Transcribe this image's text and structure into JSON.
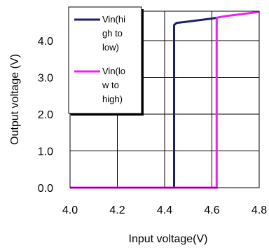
{
  "chart_data": {
    "type": "line",
    "xlabel": "Input voltage(V)",
    "ylabel": "Output voltage (V)",
    "xlim": [
      4.0,
      4.8
    ],
    "ylim": [
      0.0,
      4.8
    ],
    "x_ticks": [
      "4.0",
      "4.2",
      "4.4",
      "4.6",
      "4.8"
    ],
    "y_ticks": [
      "0.0",
      "1.0",
      "2.0",
      "3.0",
      "4.0"
    ],
    "x_tick_values": [
      4.0,
      4.2,
      4.4,
      4.6,
      4.8
    ],
    "y_tick_values": [
      0.0,
      1.0,
      2.0,
      3.0,
      4.0
    ],
    "grid": true,
    "legend_position": "top-left",
    "series": [
      {
        "name": "Vin(high to low)",
        "legend_lines": [
          "Vin(hi",
          "gh to",
          "low)"
        ],
        "color": "#1a1f6e",
        "points": [
          [
            4.0,
            0.0
          ],
          [
            4.44,
            0.0
          ],
          [
            4.44,
            4.42
          ],
          [
            4.45,
            4.48
          ],
          [
            4.5,
            4.52
          ],
          [
            4.55,
            4.56
          ],
          [
            4.6,
            4.6
          ],
          [
            4.62,
            4.62
          ]
        ]
      },
      {
        "name": "Vin(low to high)",
        "legend_lines": [
          "Vin(lo",
          "w to",
          "high)"
        ],
        "color": "#ee22ee",
        "points": [
          [
            4.0,
            0.0
          ],
          [
            4.62,
            0.0
          ],
          [
            4.62,
            4.62
          ],
          [
            4.65,
            4.66
          ],
          [
            4.7,
            4.7
          ],
          [
            4.75,
            4.74
          ],
          [
            4.8,
            4.78
          ]
        ]
      }
    ]
  }
}
